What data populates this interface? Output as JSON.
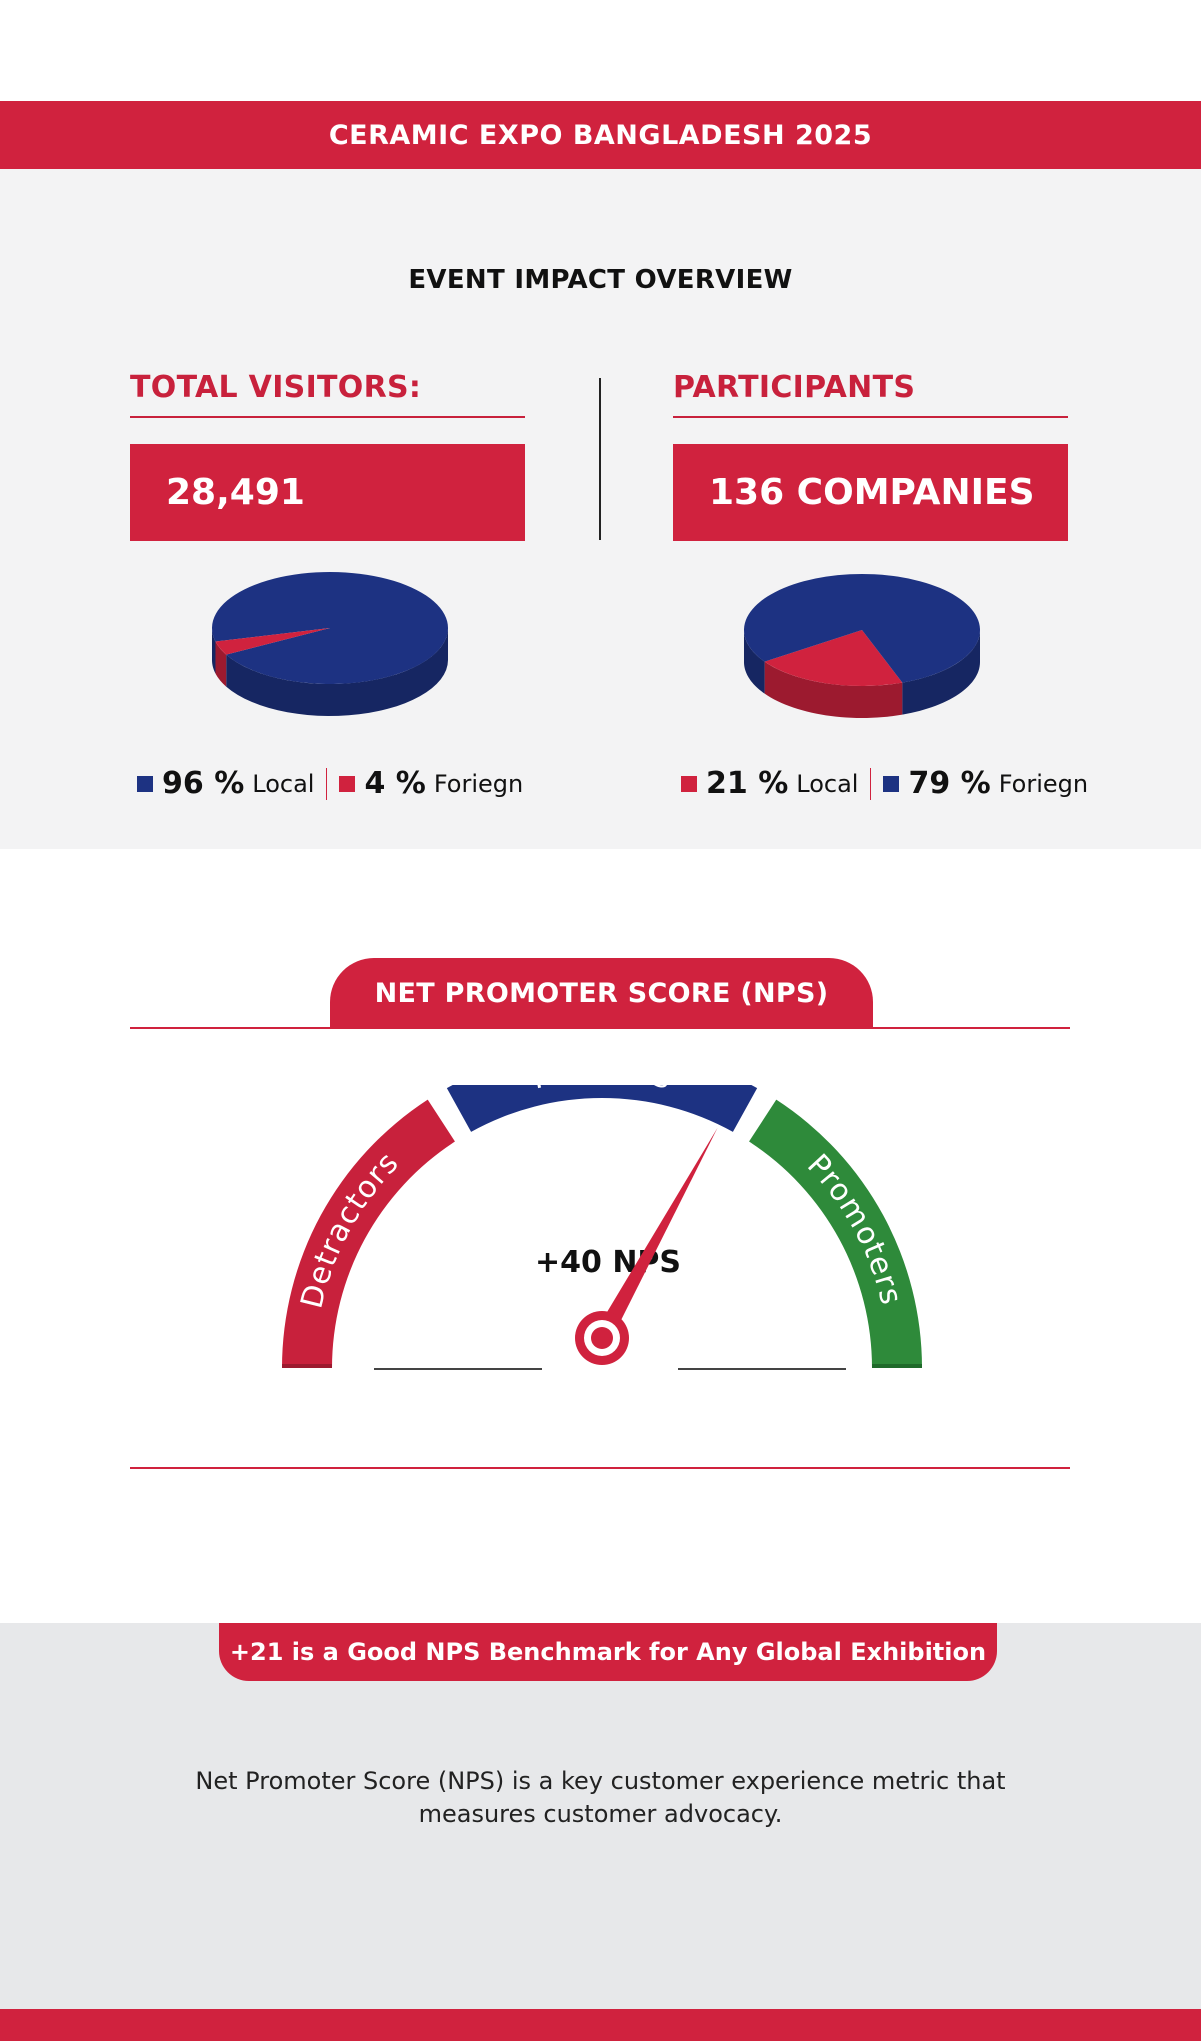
{
  "header": {
    "title": "CERAMIC EXPO BANGLADESH 2025"
  },
  "impact": {
    "title": "EVENT IMPACT OVERVIEW",
    "visitors": {
      "heading": "TOTAL VISITORS:",
      "value": "28,491",
      "legend": [
        {
          "pct": "96 %",
          "label": "Local",
          "color": "#1d3282"
        },
        {
          "pct": "4 %",
          "label": "Foriegn",
          "color": "#d0223e"
        }
      ]
    },
    "participants": {
      "heading": "PARTICIPANTS",
      "value": "136 COMPANIES",
      "legend": [
        {
          "pct": "21 %",
          "label": "Local",
          "color": "#d0223e"
        },
        {
          "pct": "79 %",
          "label": "Foriegn",
          "color": "#1d3282"
        }
      ]
    }
  },
  "chart_data": [
    {
      "type": "pie",
      "categories": [
        "Local",
        "Foriegn"
      ],
      "values": [
        96,
        4
      ],
      "colors": [
        "#1d3282",
        "#d0223e"
      ]
    },
    {
      "type": "pie",
      "categories": [
        "Local",
        "Foriegn"
      ],
      "values": [
        21,
        79
      ],
      "colors": [
        "#d0223e",
        "#1d3282"
      ]
    }
  ],
  "nps": {
    "title": "NET PROMOTER SCORE (NPS)",
    "score_label": "+40 NPS",
    "score": 40,
    "segments": [
      {
        "label": "Detractors",
        "color": "#c8213c"
      },
      {
        "label": "Passives",
        "color": "#1d3282"
      },
      {
        "label": "Promoters",
        "color": "#2e8a3a"
      }
    ]
  },
  "benchmark": {
    "text": "+21 is a Good NPS Benchmark for Any Global Exhibition",
    "description": "Net Promoter Score (NPS) is a key customer experience metric that measures customer advocacy."
  }
}
